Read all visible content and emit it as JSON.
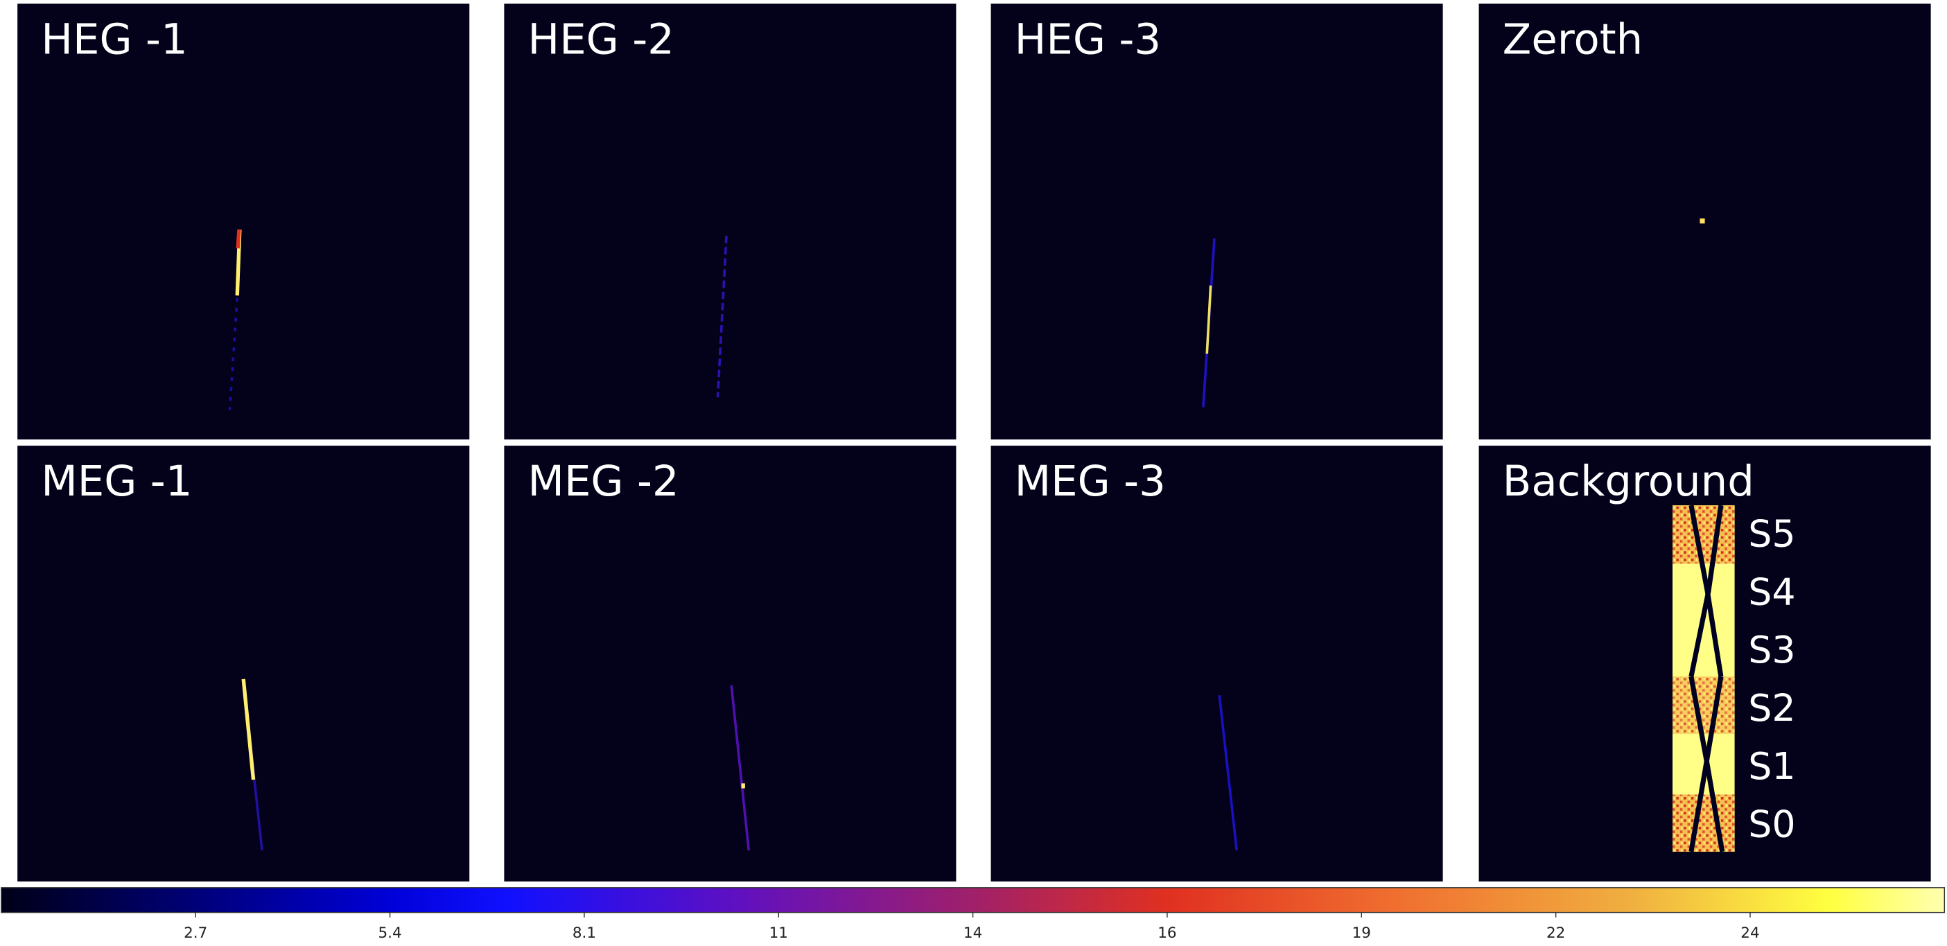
{
  "panels": [
    {
      "title": "HEG -1"
    },
    {
      "title": "HEG -2"
    },
    {
      "title": "HEG -3"
    },
    {
      "title": "Zeroth"
    },
    {
      "title": "MEG -1"
    },
    {
      "title": "MEG -2"
    },
    {
      "title": "MEG -3"
    },
    {
      "title": "Background"
    }
  ],
  "background_labels": [
    "S5",
    "S4",
    "S3",
    "S2",
    "S1",
    "S0"
  ],
  "colorbar": {
    "lim": [
      0,
      27
    ],
    "ticks": [
      2.7,
      5.4,
      8.1,
      {
        "value": 10.8,
        "label": "11"
      },
      {
        "value": 13.5,
        "label": "14"
      },
      {
        "value": 16.2,
        "label": "16"
      },
      {
        "value": 18.9,
        "label": "19"
      },
      {
        "value": 21.6,
        "label": "22"
      },
      {
        "value": 24.3,
        "label": "24"
      }
    ]
  }
}
